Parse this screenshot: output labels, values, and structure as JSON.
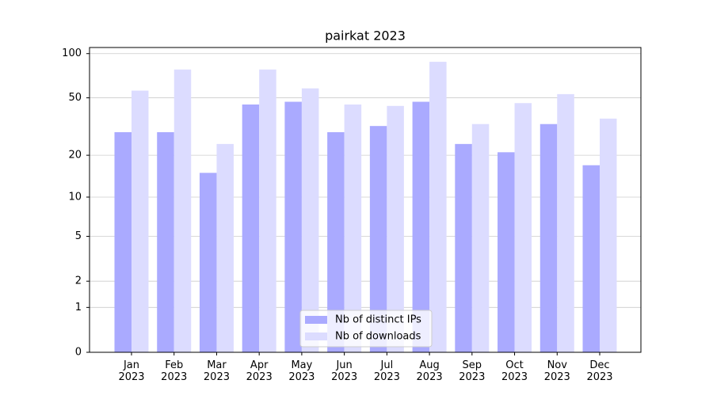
{
  "chart_data": {
    "type": "bar",
    "title": "pairkat 2023",
    "categories": [
      "Jan 2023",
      "Feb 2023",
      "Mar 2023",
      "Apr 2023",
      "May 2023",
      "Jun 2023",
      "Jul 2023",
      "Aug 2023",
      "Sep 2023",
      "Oct 2023",
      "Nov 2023",
      "Dec 2023"
    ],
    "series": [
      {
        "name": "Nb of distinct IPs",
        "color": "#aaaaff",
        "values": [
          29,
          29,
          15,
          45,
          47,
          29,
          32,
          47,
          24,
          21,
          33,
          17
        ]
      },
      {
        "name": "Nb of downloads",
        "color": "#dcdcff",
        "values": [
          56,
          78,
          24,
          78,
          58,
          45,
          44,
          88,
          33,
          46,
          53,
          36
        ]
      }
    ],
    "yscale": "log1p",
    "ylim": [
      0,
      110
    ],
    "yticks": [
      0,
      1,
      2,
      5,
      10,
      20,
      50,
      100
    ],
    "grid": true,
    "legend": "lower center"
  }
}
